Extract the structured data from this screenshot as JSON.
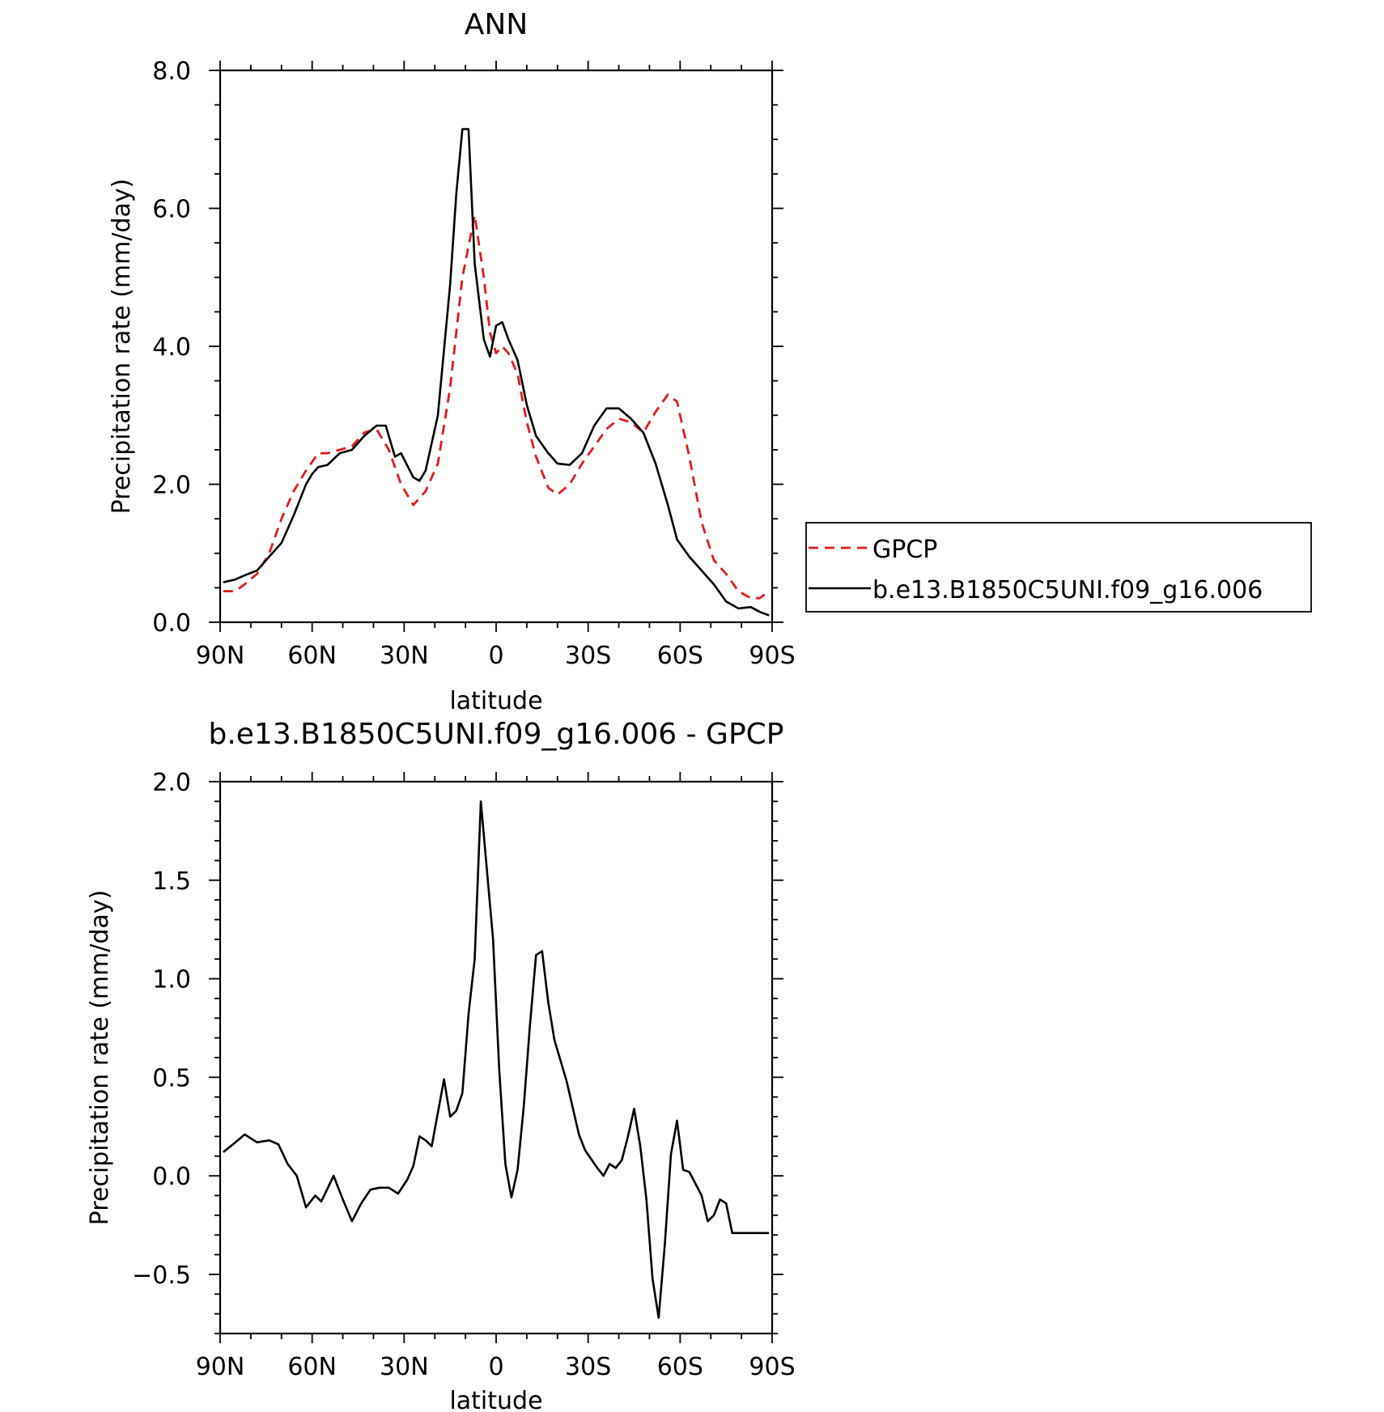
{
  "chart_data": [
    {
      "type": "line",
      "title": "ANN",
      "xlabel": "latitude",
      "ylabel": "Precipitation rate (mm/day)",
      "xlim": [
        90,
        -90
      ],
      "ylim": [
        0,
        8
      ],
      "xticks": [
        90,
        60,
        30,
        0,
        -30,
        -60,
        -90
      ],
      "xtick_labels": [
        "90N",
        "60N",
        "30N",
        "0",
        "30S",
        "60S",
        "90S"
      ],
      "yticks": [
        0,
        2,
        4,
        6,
        8
      ],
      "ytick_labels": [
        "0.0",
        "2.0",
        "4.0",
        "6.0",
        "8.0"
      ],
      "legend": {
        "position": "right"
      },
      "series": [
        {
          "name": "GPCP",
          "style": "dashed",
          "color": "#e41a1c",
          "x": [
            89,
            85,
            82,
            78,
            74,
            70,
            66,
            62,
            58,
            55,
            51,
            47,
            43,
            39,
            35,
            31,
            27,
            23,
            19,
            15,
            11,
            7,
            4,
            2,
            0,
            -2,
            -4,
            -7,
            -10,
            -13,
            -17,
            -20,
            -24,
            -28,
            -32,
            -36,
            -40,
            -44,
            -48,
            -52,
            -56,
            -59,
            -63,
            -67,
            -71,
            -75,
            -79,
            -83,
            -86,
            -89
          ],
          "values": [
            0.45,
            0.45,
            0.55,
            0.7,
            1.0,
            1.5,
            1.9,
            2.2,
            2.45,
            2.45,
            2.5,
            2.55,
            2.75,
            2.8,
            2.5,
            2.0,
            1.7,
            1.9,
            2.3,
            3.4,
            5.0,
            5.9,
            5.0,
            4.2,
            3.9,
            4.0,
            3.9,
            3.6,
            2.9,
            2.4,
            1.95,
            1.85,
            2.0,
            2.3,
            2.55,
            2.8,
            2.95,
            2.9,
            2.75,
            3.05,
            3.3,
            3.2,
            2.4,
            1.45,
            0.9,
            0.7,
            0.45,
            0.35,
            0.35,
            0.45
          ]
        },
        {
          "name": "b.e13.B1850C5UNI.f09_g16.006",
          "style": "solid",
          "color": "#000000",
          "x": [
            89,
            85,
            82,
            78,
            74,
            70,
            66,
            62,
            60,
            58,
            55,
            51,
            47,
            43,
            39,
            36,
            33,
            31,
            27,
            25,
            23,
            19,
            15,
            13,
            11,
            9,
            7,
            4,
            2,
            0,
            -2,
            -4,
            -7,
            -10,
            -13,
            -17,
            -20,
            -24,
            -28,
            -32,
            -36,
            -40,
            -44,
            -48,
            -52,
            -56,
            -59,
            -63,
            -67,
            -71,
            -75,
            -79,
            -83,
            -86,
            -89
          ],
          "values": [
            0.58,
            0.62,
            0.68,
            0.75,
            0.95,
            1.15,
            1.55,
            2.0,
            2.15,
            2.25,
            2.28,
            2.45,
            2.5,
            2.7,
            2.85,
            2.85,
            2.4,
            2.45,
            2.1,
            2.05,
            2.2,
            3.0,
            4.9,
            6.2,
            7.15,
            7.15,
            5.2,
            4.1,
            3.85,
            4.3,
            4.35,
            4.1,
            3.8,
            3.15,
            2.7,
            2.45,
            2.3,
            2.28,
            2.45,
            2.85,
            3.1,
            3.1,
            2.95,
            2.75,
            2.3,
            1.7,
            1.2,
            0.95,
            0.75,
            0.55,
            0.3,
            0.2,
            0.22,
            0.15,
            0.1
          ]
        }
      ]
    },
    {
      "type": "line",
      "title": "b.e13.B1850C5UNI.f09_g16.006 - GPCP",
      "xlabel": "latitude",
      "ylabel": "Precipitation rate (mm/day)",
      "xlim": [
        90,
        -90
      ],
      "ylim": [
        -0.8,
        2.0
      ],
      "xticks": [
        90,
        60,
        30,
        0,
        -30,
        -60,
        -90
      ],
      "xtick_labels": [
        "90N",
        "60N",
        "30N",
        "0",
        "30S",
        "60S",
        "90S"
      ],
      "yticks": [
        -0.5,
        0,
        0.5,
        1.0,
        1.5,
        2.0
      ],
      "ytick_labels": [
        "−0.5",
        "0.0",
        "0.5",
        "1.0",
        "1.5",
        "2.0"
      ],
      "series": [
        {
          "style": "solid",
          "color": "#000000",
          "x": [
            89,
            85,
            82,
            78,
            74,
            71,
            68,
            65,
            62,
            59,
            57,
            53,
            50,
            47,
            44,
            41,
            38,
            35,
            32,
            29,
            27,
            25,
            23,
            21,
            17,
            15,
            13,
            11,
            9,
            7,
            5,
            1,
            -1,
            -3,
            -5,
            -7,
            -9,
            -11,
            -13,
            -15,
            -17,
            -19,
            -23,
            -27,
            -29,
            -33,
            -35,
            -37,
            -39,
            -41,
            -43,
            -45,
            -47,
            -49,
            -51,
            -53,
            -55,
            -57,
            -59,
            -61,
            -63,
            -65,
            -67,
            -69,
            -71,
            -73,
            -75,
            -77,
            -79,
            -81,
            -83,
            -85,
            -87,
            -89
          ],
          "values": [
            0.12,
            0.17,
            0.21,
            0.17,
            0.18,
            0.16,
            0.06,
            0.0,
            -0.16,
            -0.1,
            -0.13,
            0.0,
            -0.12,
            -0.23,
            -0.14,
            -0.07,
            -0.06,
            -0.06,
            -0.09,
            -0.02,
            0.05,
            0.2,
            0.18,
            0.15,
            0.49,
            0.3,
            0.33,
            0.42,
            0.82,
            1.1,
            1.9,
            1.2,
            0.54,
            0.06,
            -0.11,
            0.03,
            0.35,
            0.76,
            1.12,
            1.14,
            0.88,
            0.69,
            0.48,
            0.21,
            0.13,
            0.04,
            0.0,
            0.06,
            0.04,
            0.08,
            0.2,
            0.34,
            0.15,
            -0.12,
            -0.52,
            -0.72,
            -0.35,
            0.11,
            0.28,
            0.03,
            0.02,
            -0.04,
            -0.1,
            -0.23,
            -0.2,
            -0.12,
            -0.14,
            -0.29,
            -0.29,
            -0.29,
            -0.29,
            -0.29,
            -0.29,
            -0.29
          ]
        }
      ]
    }
  ]
}
